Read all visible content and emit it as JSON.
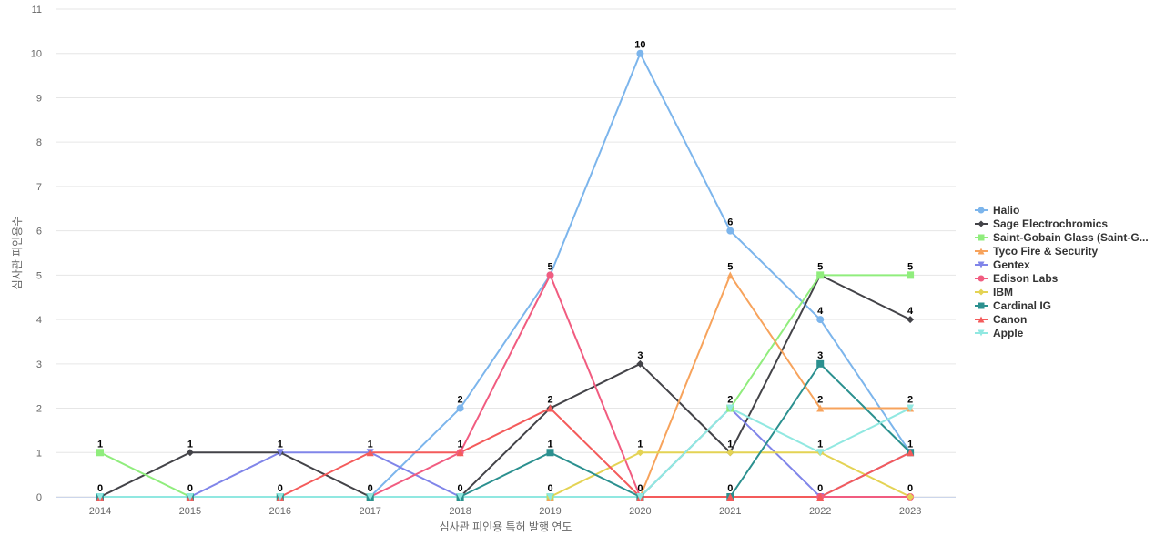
{
  "chart_data": {
    "type": "line",
    "title": "",
    "xlabel": "심사관 피인용 특허 발행 연도",
    "ylabel": "심사관 피인용수",
    "ylim": [
      0,
      11
    ],
    "y_ticks": [
      0,
      1,
      2,
      3,
      4,
      5,
      6,
      7,
      8,
      9,
      10,
      11
    ],
    "grid": true,
    "legend_position": "right",
    "x": [
      "2014",
      "2015",
      "2016",
      "2017",
      "2018",
      "2019",
      "2020",
      "2021",
      "2022",
      "2023"
    ],
    "series": [
      {
        "name": "Halio",
        "color": "#7cb5ec",
        "marker": "circle",
        "values": [
          0,
          0,
          0,
          0,
          2,
          5,
          10,
          6,
          4,
          1
        ]
      },
      {
        "name": "Sage Electrochromics",
        "color": "#434348",
        "marker": "diamond",
        "values": [
          0,
          1,
          1,
          0,
          0,
          2,
          3,
          1,
          5,
          4
        ]
      },
      {
        "name": "Saint-Gobain Glass (Saint-G...",
        "color": "#90ed7d",
        "marker": "square",
        "values": [
          1,
          0,
          0,
          0,
          0,
          0,
          0,
          2,
          5,
          5
        ]
      },
      {
        "name": "Tyco Fire & Security",
        "color": "#f7a35c",
        "marker": "triangle",
        "values": [
          0,
          0,
          0,
          0,
          0,
          0,
          0,
          5,
          2,
          2
        ]
      },
      {
        "name": "Gentex",
        "color": "#8085e9",
        "marker": "triangle-down",
        "values": [
          0,
          0,
          1,
          1,
          0,
          0,
          0,
          2,
          0,
          1
        ]
      },
      {
        "name": "Edison Labs",
        "color": "#f15c80",
        "marker": "circle",
        "values": [
          0,
          0,
          0,
          0,
          1,
          5,
          0,
          0,
          0,
          0
        ]
      },
      {
        "name": "IBM",
        "color": "#e4d354",
        "marker": "diamond",
        "values": [
          0,
          0,
          0,
          0,
          0,
          0,
          1,
          1,
          1,
          0
        ]
      },
      {
        "name": "Cardinal IG",
        "color": "#2b908f",
        "marker": "square",
        "values": [
          0,
          0,
          0,
          0,
          0,
          1,
          0,
          0,
          3,
          1
        ]
      },
      {
        "name": "Canon",
        "color": "#f45b5b",
        "marker": "triangle",
        "values": [
          0,
          0,
          0,
          1,
          1,
          2,
          0,
          0,
          0,
          1
        ]
      },
      {
        "name": "Apple",
        "color": "#91e8e1",
        "marker": "triangle-down",
        "values": [
          0,
          0,
          0,
          0,
          0,
          0,
          0,
          2,
          1,
          2
        ]
      }
    ],
    "data_labels": [
      {
        "x": "2014",
        "text": "1",
        "series": "Saint-Gobain Glass (Saint-G..."
      },
      {
        "x": "2014",
        "text": "0",
        "series": "Sage Electrochromics"
      },
      {
        "x": "2015",
        "text": "1",
        "series": "Sage Electrochromics"
      },
      {
        "x": "2015",
        "text": "0",
        "series": "Halio"
      },
      {
        "x": "2016",
        "text": "1",
        "series": "Sage Electrochromics"
      },
      {
        "x": "2016",
        "text": "0",
        "series": "Halio"
      },
      {
        "x": "2017",
        "text": "1",
        "series": "Canon"
      },
      {
        "x": "2017",
        "text": "0",
        "series": "Halio"
      },
      {
        "x": "2018",
        "text": "2",
        "series": "Halio"
      },
      {
        "x": "2018",
        "text": "1",
        "series": "Canon"
      },
      {
        "x": "2018",
        "text": "0",
        "series": "Sage Electrochromics"
      },
      {
        "x": "2019",
        "text": "5",
        "series": "Halio"
      },
      {
        "x": "2019",
        "text": "2",
        "series": "Sage Electrochromics"
      },
      {
        "x": "2019",
        "text": "1",
        "series": "Cardinal IG"
      },
      {
        "x": "2019",
        "text": "0",
        "series": "IBM"
      },
      {
        "x": "2020",
        "text": "10",
        "series": "Halio"
      },
      {
        "x": "2020",
        "text": "3",
        "series": "Sage Electrochromics"
      },
      {
        "x": "2020",
        "text": "1",
        "series": "IBM"
      },
      {
        "x": "2020",
        "text": "0",
        "series": "Tyco Fire & Security"
      },
      {
        "x": "2021",
        "text": "6",
        "series": "Halio"
      },
      {
        "x": "2021",
        "text": "5",
        "series": "Tyco Fire & Security"
      },
      {
        "x": "2021",
        "text": "2",
        "series": "Saint-Gobain Glass (Saint-G..."
      },
      {
        "x": "2021",
        "text": "1",
        "series": "Sage Electrochromics"
      },
      {
        "x": "2021",
        "text": "0",
        "series": "Cardinal IG"
      },
      {
        "x": "2022",
        "text": "5",
        "series": "Saint-Gobain Glass (Saint-G..."
      },
      {
        "x": "2022",
        "text": "4",
        "series": "Halio"
      },
      {
        "x": "2022",
        "text": "3",
        "series": "Cardinal IG"
      },
      {
        "x": "2022",
        "text": "2",
        "series": "Tyco Fire & Security"
      },
      {
        "x": "2022",
        "text": "1",
        "series": "IBM"
      },
      {
        "x": "2022",
        "text": "0",
        "series": "Gentex"
      },
      {
        "x": "2023",
        "text": "5",
        "series": "Saint-Gobain Glass (Saint-G..."
      },
      {
        "x": "2023",
        "text": "4",
        "series": "Sage Electrochromics"
      },
      {
        "x": "2023",
        "text": "2",
        "series": "Tyco Fire & Security"
      },
      {
        "x": "2023",
        "text": "1",
        "series": "Halio"
      },
      {
        "x": "2023",
        "text": "0",
        "series": "IBM"
      }
    ]
  }
}
